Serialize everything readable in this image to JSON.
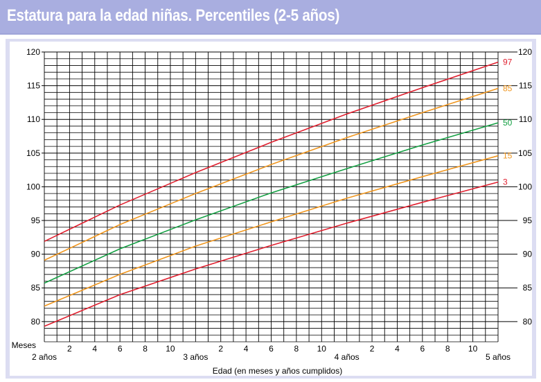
{
  "header": {
    "title": "Estatura para la edad niñas. Percentiles (2-5 años)"
  },
  "chart_data": {
    "type": "line",
    "title": "Estatura para la edad niñas. Percentiles (2-5 años)",
    "xlabel": "Edad (en meses y años cumplidos)",
    "x_unit_label": "Meses",
    "xlim": [
      24,
      60
    ],
    "ylim": [
      77,
      120
    ],
    "y_ticks": [
      80,
      85,
      90,
      95,
      100,
      105,
      110,
      115,
      120
    ],
    "month_ticks": [
      {
        "x": 26,
        "label": "2"
      },
      {
        "x": 28,
        "label": "4"
      },
      {
        "x": 30,
        "label": "6"
      },
      {
        "x": 32,
        "label": "8"
      },
      {
        "x": 34,
        "label": "10"
      },
      {
        "x": 38,
        "label": "2"
      },
      {
        "x": 40,
        "label": "4"
      },
      {
        "x": 42,
        "label": "6"
      },
      {
        "x": 44,
        "label": "8"
      },
      {
        "x": 46,
        "label": "10"
      },
      {
        "x": 50,
        "label": "2"
      },
      {
        "x": 52,
        "label": "4"
      },
      {
        "x": 54,
        "label": "6"
      },
      {
        "x": 56,
        "label": "8"
      },
      {
        "x": 58,
        "label": "10"
      }
    ],
    "year_ticks": [
      {
        "x": 24,
        "label": "2 años"
      },
      {
        "x": 36,
        "label": "3 años"
      },
      {
        "x": 48,
        "label": "4 años"
      },
      {
        "x": 60,
        "label": "5 años"
      }
    ],
    "grid": true,
    "legend": "inline labels at right end of curves",
    "colors": {
      "p3": "#e0202f",
      "p15": "#f0961e",
      "p50": "#14a043",
      "p85": "#f0961e",
      "p97": "#e0202f"
    },
    "series": [
      {
        "name": "97",
        "color": "#e0202f",
        "x": [
          24,
          30,
          36,
          42,
          48,
          54,
          60
        ],
        "values": [
          91.9,
          97.3,
          102.1,
          106.6,
          110.8,
          114.7,
          118.5
        ]
      },
      {
        "name": "85",
        "color": "#f0961e",
        "x": [
          24,
          30,
          36,
          42,
          48,
          54,
          60
        ],
        "values": [
          89.1,
          94.4,
          99.0,
          103.3,
          107.3,
          111.0,
          114.6
        ]
      },
      {
        "name": "50",
        "color": "#14a043",
        "x": [
          24,
          30,
          36,
          42,
          48,
          54,
          60
        ],
        "values": [
          85.7,
          90.8,
          95.1,
          99.1,
          102.7,
          106.2,
          109.5
        ]
      },
      {
        "name": "15",
        "color": "#f0961e",
        "x": [
          24,
          30,
          36,
          42,
          48,
          54,
          60
        ],
        "values": [
          82.3,
          87.0,
          91.2,
          94.8,
          98.3,
          101.5,
          104.6
        ]
      },
      {
        "name": "3",
        "color": "#e0202f",
        "x": [
          24,
          30,
          36,
          42,
          48,
          54,
          60
        ],
        "values": [
          79.3,
          84.0,
          87.8,
          91.3,
          94.6,
          97.7,
          100.7
        ]
      }
    ]
  }
}
